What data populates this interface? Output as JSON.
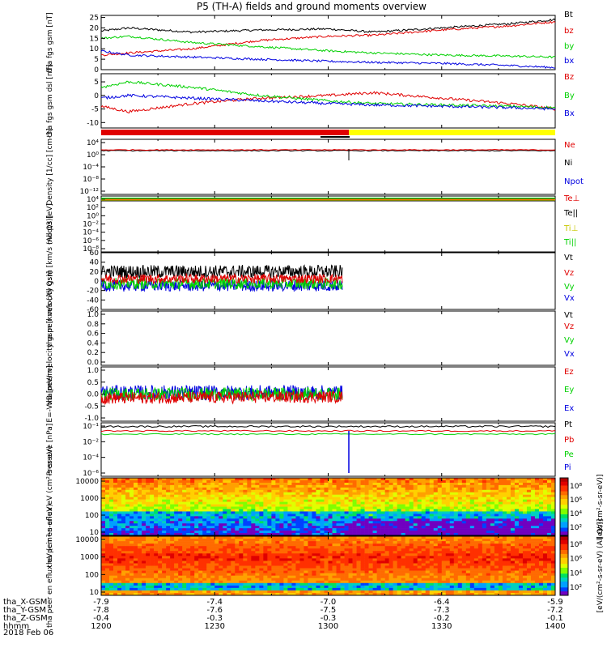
{
  "title": "P5 (TH-A) fields and ground moments overview",
  "date_label": "2018 Feb 06",
  "colors": {
    "black": "#000000",
    "red": "#e00000",
    "green": "#00d000",
    "blue": "#0000e0",
    "yellow": "#ffff00"
  },
  "chart_data": [
    {
      "type": "line",
      "ylabel": "tha fgs gsm [nT]",
      "ylim": [
        0,
        26
      ],
      "yticks": [
        0,
        5,
        10,
        15,
        20,
        25
      ],
      "series": [
        {
          "name": "Bt",
          "color": "black",
          "x": [
            0,
            0.06,
            0.2,
            0.35,
            0.5,
            0.6,
            0.75,
            0.9,
            1
          ],
          "values": [
            18.5,
            20,
            18,
            19,
            19.5,
            18,
            20,
            22,
            24
          ]
        },
        {
          "name": "bz",
          "color": "red",
          "x": [
            0,
            0.06,
            0.2,
            0.35,
            0.5,
            0.6,
            0.75,
            0.9,
            1
          ],
          "values": [
            7,
            8,
            10,
            14,
            16,
            16.5,
            19,
            21,
            23
          ]
        },
        {
          "name": "by",
          "color": "green",
          "x": [
            0,
            0.06,
            0.2,
            0.35,
            0.5,
            0.6,
            0.75,
            0.9,
            1
          ],
          "values": [
            15,
            16,
            13,
            11,
            9,
            8,
            7,
            6.5,
            6
          ]
        },
        {
          "name": "bx",
          "color": "blue",
          "x": [
            0,
            0.06,
            0.2,
            0.35,
            0.5,
            0.6,
            0.75,
            0.9,
            1
          ],
          "values": [
            9,
            7,
            6,
            5,
            4,
            3.5,
            3,
            2,
            1
          ]
        }
      ]
    },
    {
      "type": "line",
      "ylabel": "tha fgs gsm dsl [nT]",
      "ylim": [
        -12,
        8
      ],
      "yticks": [
        -10,
        -5,
        0,
        5
      ],
      "series": [
        {
          "name": "Bz",
          "color": "red",
          "x": [
            0,
            0.06,
            0.2,
            0.35,
            0.5,
            0.6,
            0.75,
            0.9,
            1
          ],
          "values": [
            -4,
            -6,
            -3,
            -1,
            0,
            1,
            -1,
            -3,
            -5
          ]
        },
        {
          "name": "By",
          "color": "green",
          "x": [
            0,
            0.06,
            0.2,
            0.35,
            0.5,
            0.6,
            0.75,
            0.9,
            1
          ],
          "values": [
            3,
            5,
            3,
            0,
            -2,
            -3,
            -3.5,
            -4,
            -4.5
          ]
        },
        {
          "name": "Bx",
          "color": "blue",
          "x": [
            0,
            0.06,
            0.2,
            0.35,
            0.5,
            0.6,
            0.75,
            0.9,
            1
          ],
          "values": [
            -1,
            0,
            -1,
            -2,
            -3,
            -3.5,
            -4,
            -4.5,
            -5
          ]
        }
      ]
    },
    {
      "type": "line",
      "ylabel": "Density [1/cc] [cm-3]",
      "yscale": "log",
      "yticks": [
        "10⁴",
        "10⁰",
        "10⁻⁴",
        "10⁻⁸",
        "10⁻¹²"
      ],
      "series": [
        {
          "name": "Ne",
          "color": "red"
        },
        {
          "name": "Ni",
          "color": "black"
        },
        {
          "name": "Npot",
          "color": "blue"
        }
      ]
    },
    {
      "type": "line",
      "ylabel": "moqt3 [eV]",
      "yscale": "log",
      "yticks": [
        "10⁴",
        "10²",
        "10⁰",
        "10⁻²",
        "10⁻⁴",
        "10⁻⁶",
        "10⁻⁸"
      ],
      "series": [
        {
          "name": "Te⊥",
          "color": "red"
        },
        {
          "name": "Te||",
          "color": "black"
        },
        {
          "name": "Ti⊥",
          "color": "yellow"
        },
        {
          "name": "Ti||",
          "color": "green"
        }
      ]
    },
    {
      "type": "line",
      "ylabel": "tha peir velocity gsm [km/s (All Qs)]",
      "ylim": [
        -60,
        60
      ],
      "yticks": [
        60,
        40,
        20,
        0,
        -20,
        -40,
        -60
      ],
      "series": [
        {
          "name": "Vt",
          "color": "black"
        },
        {
          "name": "Vz",
          "color": "red"
        },
        {
          "name": "Vy",
          "color": "green"
        },
        {
          "name": "Vx",
          "color": "blue"
        }
      ]
    },
    {
      "type": "line",
      "ylabel": "tha peer velocity gsm [km/s (All Qs)]",
      "ylim": [
        0,
        1
      ],
      "yticks": [
        "1.0",
        "0.8",
        "0.6",
        "0.4",
        "0.2",
        "0.0"
      ],
      "series": [
        {
          "name": "Vt",
          "color": "black"
        },
        {
          "name": "Vz",
          "color": "red"
        },
        {
          "name": "Vy",
          "color": "green"
        },
        {
          "name": "Vx",
          "color": "blue"
        }
      ]
    },
    {
      "type": "line",
      "ylabel": "E=-VxB [mV/m]",
      "ylim": [
        -1,
        1
      ],
      "yticks": [
        "1.0",
        "0.5",
        "0.0",
        "-0.5",
        "-1.0"
      ],
      "series": [
        {
          "name": "Ez",
          "color": "red"
        },
        {
          "name": "Ey",
          "color": "green"
        },
        {
          "name": "Ex",
          "color": "blue"
        }
      ]
    },
    {
      "type": "line",
      "ylabel": "Pressure [nPa]",
      "yscale": "log",
      "yticks": [
        "10⁻¹",
        "10⁻²",
        "10⁻⁴",
        "10⁻⁶"
      ],
      "series": [
        {
          "name": "Pt",
          "color": "black"
        },
        {
          "name": "Pb",
          "color": "red"
        },
        {
          "name": "Pe",
          "color": "green"
        },
        {
          "name": "Pi",
          "color": "blue"
        }
      ]
    },
    {
      "type": "heatmap",
      "ylabel": "tha peir en eflux eV (cm²-s-sr-eV)",
      "yticks": [
        "10000",
        "1000",
        "100",
        "10"
      ],
      "colorbar_ticks": [
        "10⁸",
        "10⁶",
        "10⁴",
        "10²"
      ],
      "colorbar_label": "[eV/(cm²-s-sr-eV)]"
    },
    {
      "type": "heatmap",
      "ylabel": "tha peer en eflux eV (cm²-s-sr-eV)",
      "yticks": [
        "10000",
        "1000",
        "100",
        "10"
      ],
      "colorbar_ticks": [
        "10⁸",
        "10⁶",
        "10⁴",
        "10²"
      ],
      "colorbar_label": "[eV/(cm²-s-sr-eV) (All Qs)]"
    }
  ],
  "footer": {
    "rows": [
      {
        "label": "tha_X-GSM",
        "values": [
          "-7.9",
          "-7.4",
          "-7.0",
          "-6.4",
          "-5.9"
        ]
      },
      {
        "label": "tha_Y-GSM",
        "values": [
          "-7.8",
          "-7.6",
          "-7.5",
          "-7.3",
          "-7.2"
        ]
      },
      {
        "label": "tha_Z-GSM",
        "values": [
          "-0.4",
          "-0.3",
          "-0.3",
          "-0.2",
          "-0.1"
        ]
      },
      {
        "label": "hhmm",
        "values": [
          "1200",
          "1230",
          "1300",
          "1330",
          "1400"
        ]
      }
    ]
  }
}
